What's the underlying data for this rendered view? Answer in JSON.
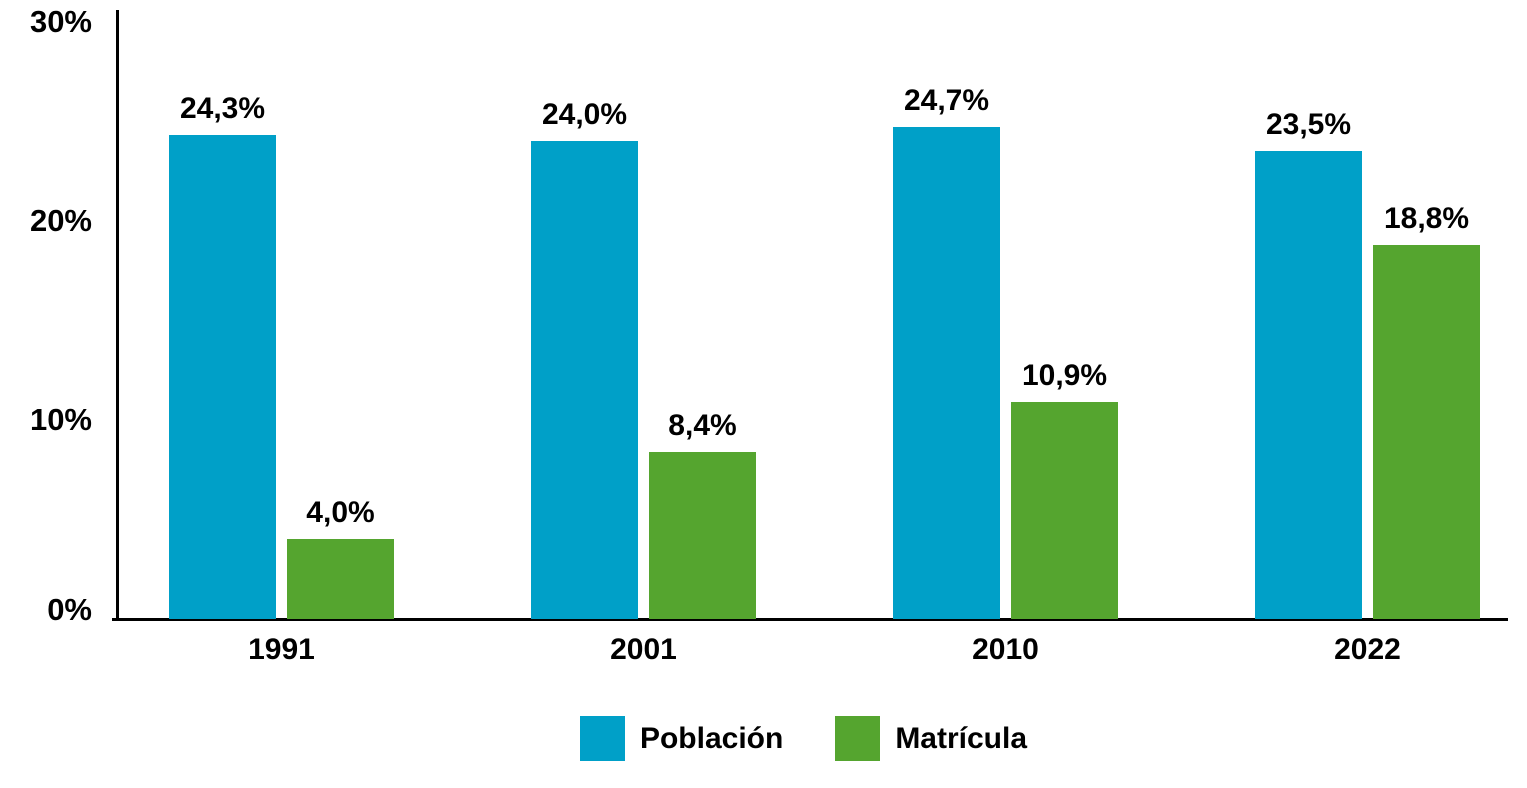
{
  "chart_data": {
    "type": "bar",
    "title": "",
    "xlabel": "",
    "ylabel": "",
    "categories": [
      "1991",
      "2001",
      "2010",
      "2022"
    ],
    "series": [
      {
        "name": "Población",
        "color": "#00a0c8",
        "values": [
          24.3,
          24.0,
          24.7,
          23.5
        ],
        "value_labels": [
          "24,3%",
          "24,0%",
          "24,7%",
          "23,5%"
        ]
      },
      {
        "name": "Matrícula",
        "color": "#55a52f",
        "values": [
          4.0,
          8.4,
          10.9,
          18.8
        ],
        "value_labels": [
          "4,0%",
          "8,4%",
          "10,9%",
          "18,8%"
        ]
      }
    ],
    "ylim": [
      0,
      30
    ],
    "y_ticks": [
      {
        "value": 0,
        "label": "0%"
      },
      {
        "value": 10,
        "label": "10%"
      },
      {
        "value": 20,
        "label": "20%"
      },
      {
        "value": 30,
        "label": "30%"
      }
    ],
    "grid": false,
    "legend_position": "bottom"
  },
  "legend": {
    "items": [
      {
        "label": "Población",
        "color": "#00a0c8"
      },
      {
        "label": "Matrícula",
        "color": "#55a52f"
      }
    ]
  },
  "colors": {
    "poblacion_blue": "#00a0c8",
    "matricula_green": "#55a52f",
    "axis": "#000000",
    "text": "#000000",
    "background": "#ffffff"
  }
}
